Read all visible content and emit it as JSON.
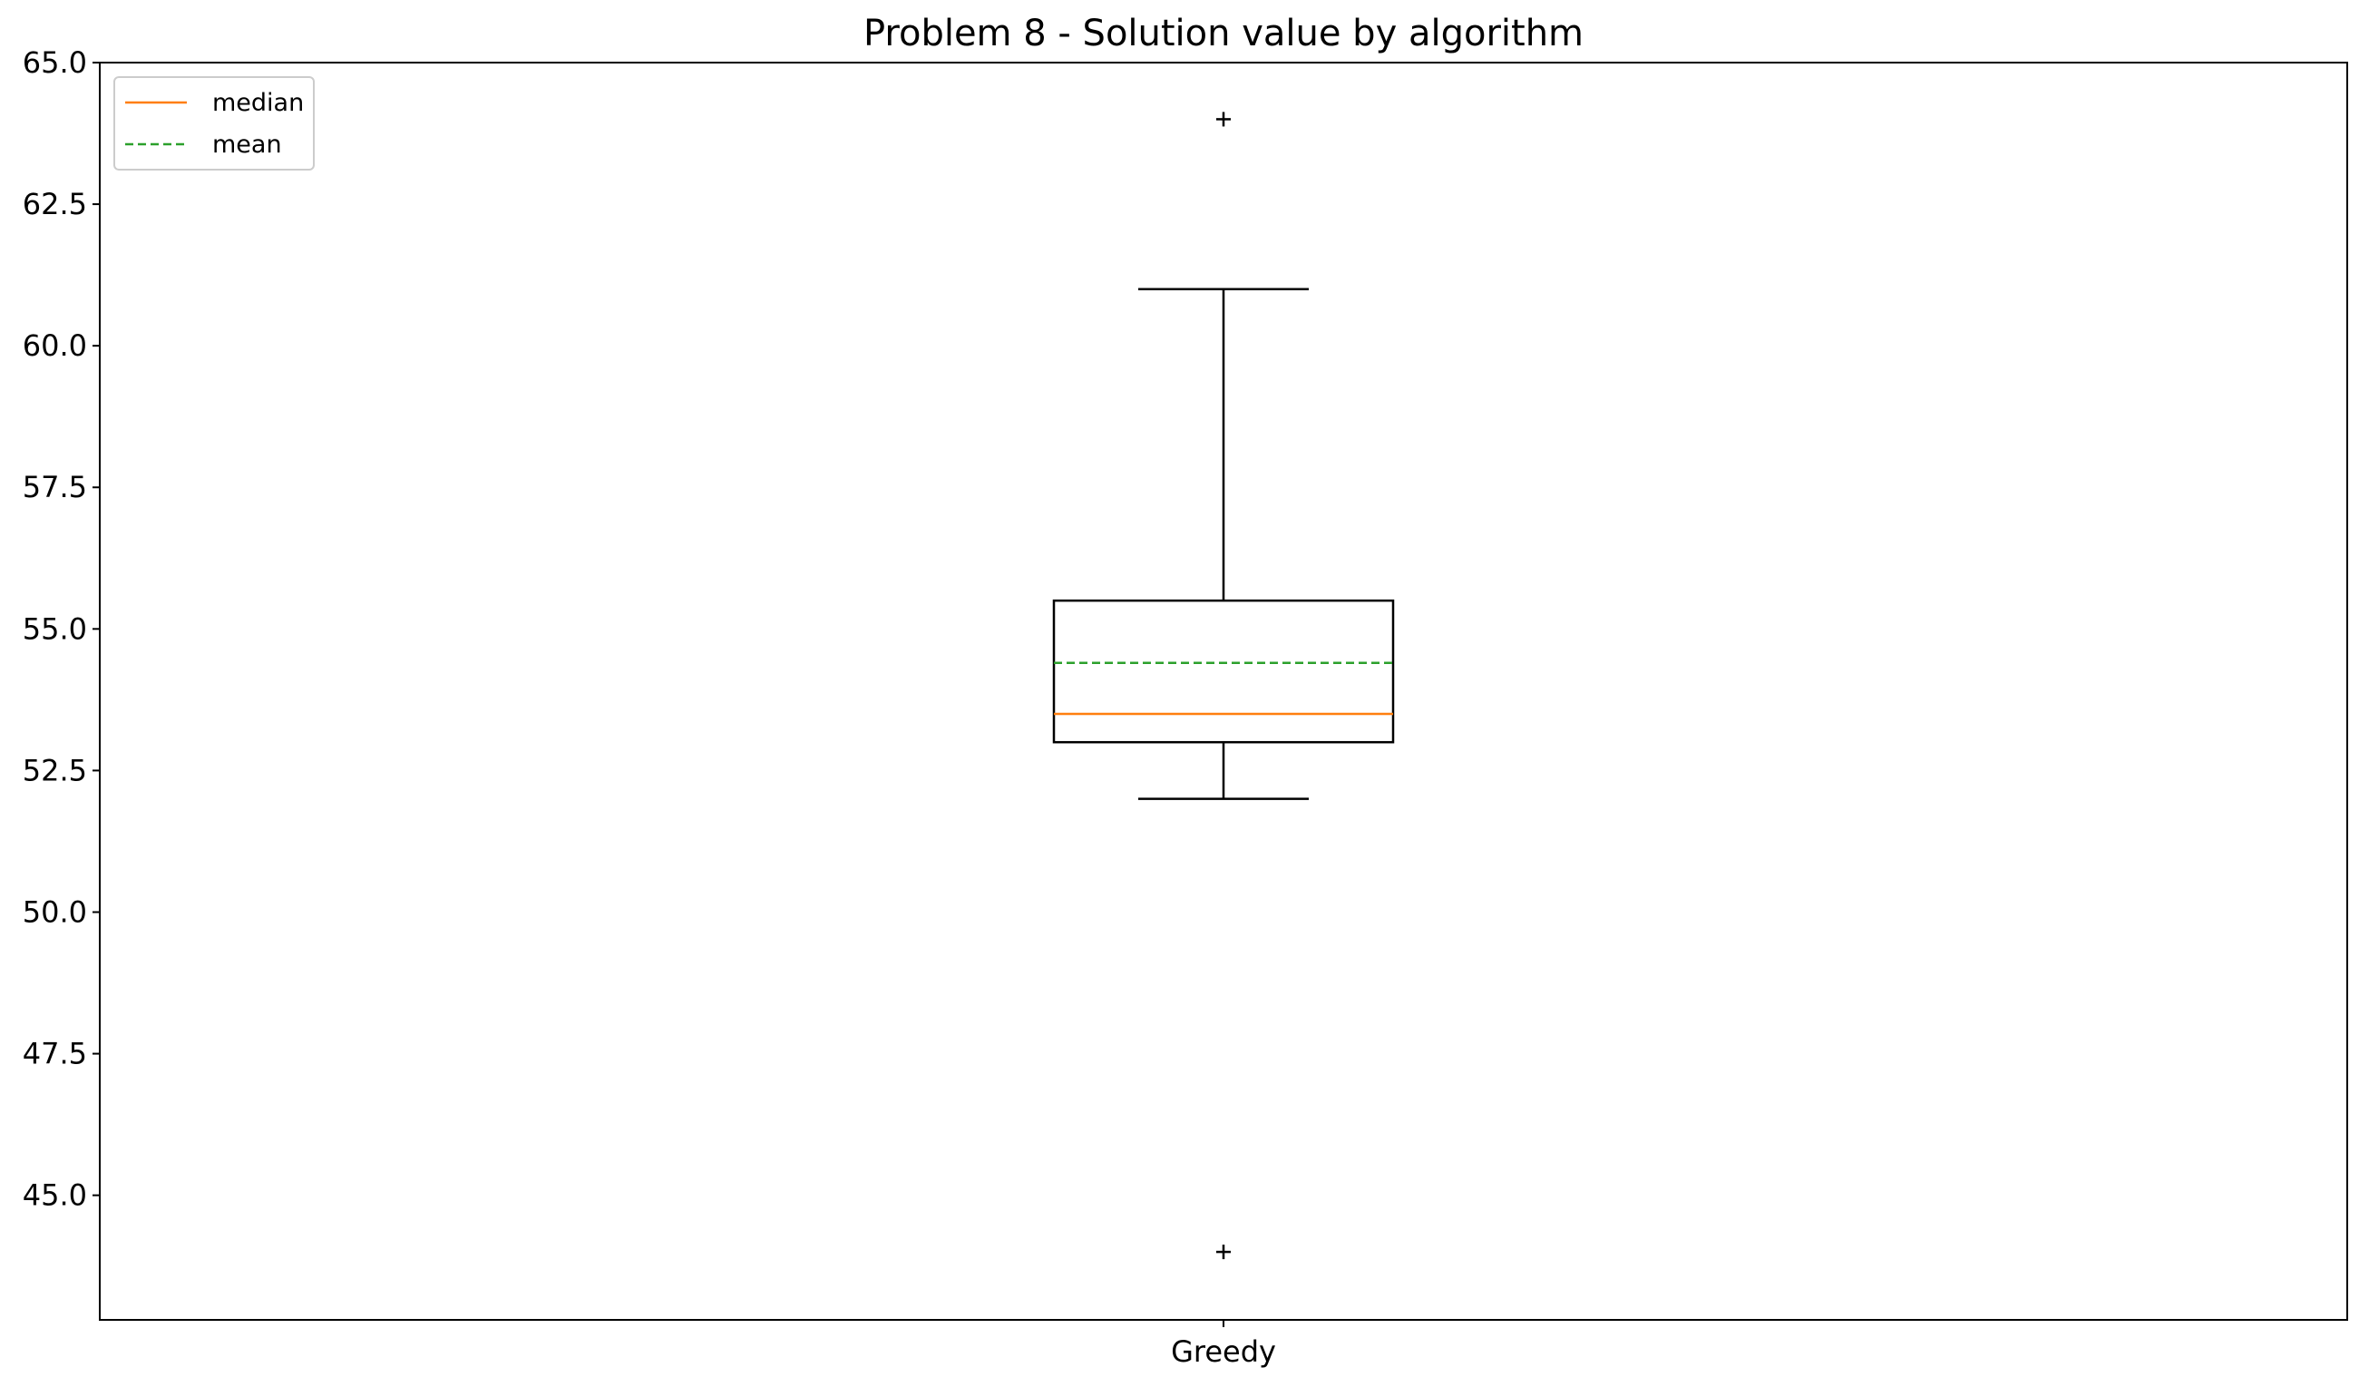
{
  "chart_data": {
    "type": "box",
    "title": "Problem 8 - Solution value by algorithm",
    "xlabel": "",
    "ylabel": "",
    "ylim": [
      42.8,
      65.0
    ],
    "yticks": [
      45.0,
      47.5,
      50.0,
      52.5,
      55.0,
      57.5,
      60.0,
      62.5,
      65.0
    ],
    "ytick_labels": [
      "45.0",
      "47.5",
      "50.0",
      "52.5",
      "55.0",
      "57.5",
      "60.0",
      "62.5",
      "65.0"
    ],
    "grid": false,
    "legend_position": "upper-left",
    "legend": [
      {
        "label": "median",
        "color": "#ff7f0e",
        "style": "solid"
      },
      {
        "label": "mean",
        "color": "#2ca02c",
        "style": "dashed"
      }
    ],
    "categories": [
      "Greedy"
    ],
    "boxes": [
      {
        "name": "Greedy",
        "whisker_low": 52.0,
        "q1": 53.0,
        "median": 53.5,
        "mean": 54.4,
        "q3": 55.5,
        "whisker_high": 61.0,
        "outliers": [
          64.0,
          44.0
        ]
      }
    ],
    "colors": {
      "box": "#000000",
      "median": "#ff7f0e",
      "mean": "#2ca02c",
      "outlier": "#000000"
    }
  }
}
